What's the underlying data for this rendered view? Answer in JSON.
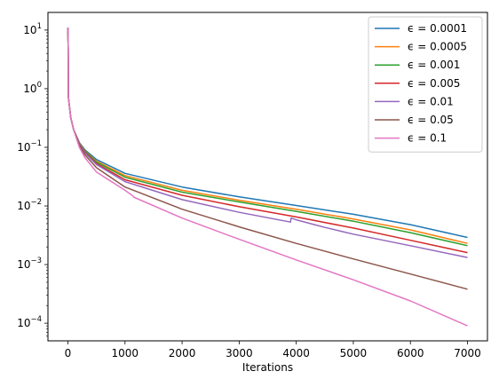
{
  "chart_data": {
    "type": "line",
    "title": "",
    "xlabel": "Iterations",
    "ylabel": "",
    "xlim": [
      -350,
      7350
    ],
    "ylim": [
      5e-05,
      20
    ],
    "yscale": "log",
    "grid": false,
    "legend_position": "top-right",
    "x_ticks": [
      0,
      1000,
      2000,
      3000,
      4000,
      5000,
      6000,
      7000
    ],
    "x_tick_labels": [
      "0",
      "1000",
      "2000",
      "3000",
      "4000",
      "5000",
      "6000",
      "7000"
    ],
    "y_ticks": [
      0.0001,
      0.001,
      0.01,
      0.1,
      1,
      10
    ],
    "y_tick_labels": [
      {
        "base": "10",
        "exp": "−4"
      },
      {
        "base": "10",
        "exp": "−3"
      },
      {
        "base": "10",
        "exp": "−2"
      },
      {
        "base": "10",
        "exp": "−1"
      },
      {
        "base": "10",
        "exp": "0"
      },
      {
        "base": "10",
        "exp": "1"
      }
    ],
    "series": [
      {
        "name": "ϵ = 0.0001",
        "color": "#1f77b4",
        "x": [
          0,
          5,
          10,
          50,
          100,
          200,
          300,
          500,
          1000,
          2000,
          3000,
          4000,
          5000,
          6000,
          7000
        ],
        "y": [
          11,
          5,
          0.7,
          0.32,
          0.2,
          0.12,
          0.09,
          0.062,
          0.036,
          0.021,
          0.0143,
          0.0102,
          0.0072,
          0.0048,
          0.0029
        ]
      },
      {
        "name": "ϵ = 0.0005",
        "color": "#ff7f0e",
        "x": [
          0,
          5,
          10,
          50,
          100,
          200,
          300,
          500,
          1000,
          2000,
          3000,
          4000,
          5000,
          6000,
          7000
        ],
        "y": [
          11,
          5,
          0.7,
          0.32,
          0.2,
          0.118,
          0.087,
          0.058,
          0.033,
          0.0185,
          0.0125,
          0.0088,
          0.006,
          0.0039,
          0.0023
        ]
      },
      {
        "name": "ϵ = 0.001",
        "color": "#2ca02c",
        "x": [
          0,
          5,
          10,
          50,
          100,
          200,
          300,
          500,
          1000,
          2000,
          3000,
          4000,
          5000,
          6000,
          7000
        ],
        "y": [
          11,
          5,
          0.7,
          0.32,
          0.2,
          0.116,
          0.085,
          0.056,
          0.031,
          0.0172,
          0.0117,
          0.0081,
          0.0055,
          0.0035,
          0.0021
        ]
      },
      {
        "name": "ϵ = 0.005",
        "color": "#d62728",
        "x": [
          0,
          5,
          10,
          50,
          100,
          200,
          300,
          500,
          1000,
          2000,
          3000,
          4000,
          5000,
          6000,
          7000
        ],
        "y": [
          11,
          5,
          0.7,
          0.32,
          0.2,
          0.114,
          0.082,
          0.053,
          0.028,
          0.0152,
          0.0097,
          0.0065,
          0.0042,
          0.0026,
          0.0016
        ]
      },
      {
        "name": "ϵ = 0.01",
        "color": "#9467bd",
        "x": [
          0,
          5,
          10,
          50,
          100,
          200,
          300,
          500,
          1000,
          2000,
          3000,
          3900,
          3910,
          4000,
          4500,
          5000,
          6000,
          7000
        ],
        "y": [
          11,
          5,
          0.7,
          0.32,
          0.2,
          0.112,
          0.08,
          0.051,
          0.026,
          0.0128,
          0.0078,
          0.0053,
          0.0062,
          0.0058,
          0.0043,
          0.0033,
          0.0021,
          0.00132
        ]
      },
      {
        "name": "ϵ = 0.05",
        "color": "#8c564b",
        "x": [
          0,
          5,
          10,
          50,
          100,
          200,
          300,
          500,
          1000,
          2000,
          3000,
          4000,
          5000,
          6000,
          7000
        ],
        "y": [
          11,
          5,
          0.7,
          0.32,
          0.2,
          0.108,
          0.074,
          0.045,
          0.021,
          0.0088,
          0.0044,
          0.0023,
          0.00125,
          0.00069,
          0.00038
        ]
      },
      {
        "name": "ϵ = 0.1",
        "color": "#e377c2",
        "x": [
          0,
          5,
          10,
          50,
          100,
          200,
          300,
          500,
          1000,
          1140,
          1150,
          2000,
          3000,
          4000,
          5000,
          6000,
          7000
        ],
        "y": [
          11,
          5,
          0.7,
          0.32,
          0.2,
          0.1,
          0.066,
          0.038,
          0.0185,
          0.0148,
          0.0142,
          0.0062,
          0.0027,
          0.0012,
          0.00055,
          0.00024,
          9e-05
        ]
      }
    ]
  }
}
